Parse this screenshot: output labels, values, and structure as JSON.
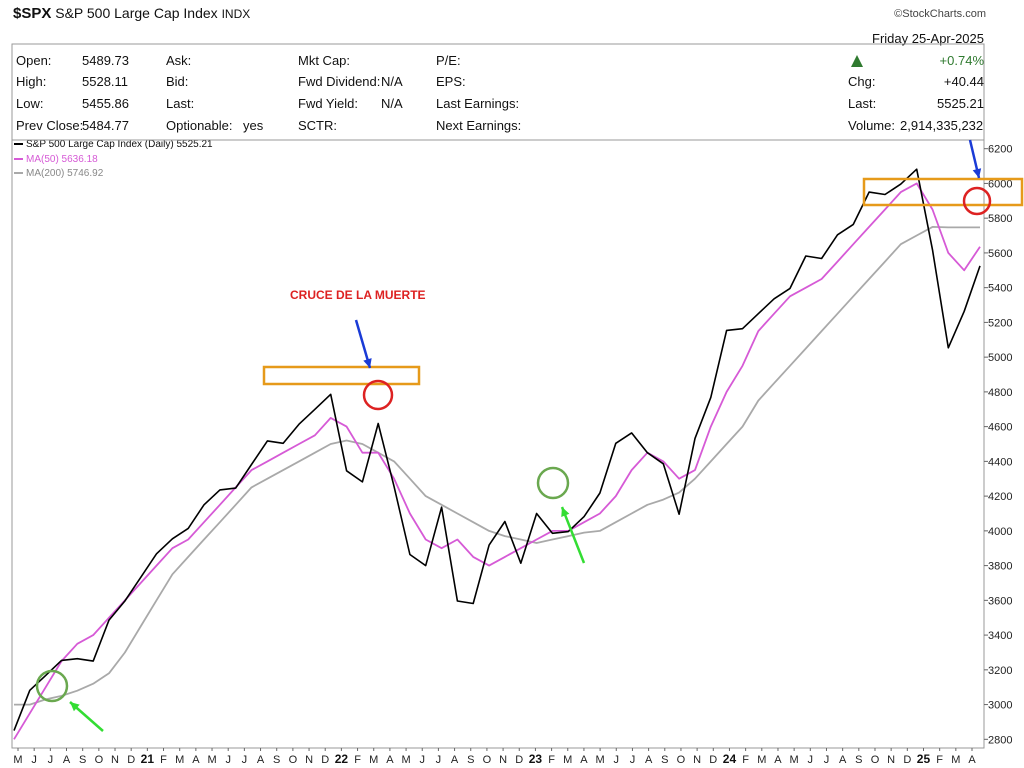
{
  "header": {
    "symbol": "$SPX",
    "name": "S&P 500 Large Cap Index",
    "exchange": "INDX",
    "credit": "©StockCharts.com",
    "date": "Friday  25-Apr-2025",
    "pct_change": "+0.74%",
    "fields": {
      "open_label": "Open:",
      "open_value": "5489.73",
      "high_label": "High:",
      "high_value": "5528.11",
      "low_label": "Low:",
      "low_value": "5455.86",
      "prev_label": "Prev Close:",
      "prev_value": "5484.77",
      "ask_label": "Ask:",
      "bid_label": "Bid:",
      "last_label": "Last:",
      "optionable_label": "Optionable:",
      "optionable_value": "yes",
      "mktcap_label": "Mkt Cap:",
      "fwd_div_label": "Fwd Dividend:",
      "fwd_div_value": "N/A",
      "fwd_yield_label": "Fwd Yield:",
      "fwd_yield_value": "N/A",
      "sctr_label": "SCTR:",
      "pe_label": "P/E:",
      "eps_label": "EPS:",
      "last_earn_label": "Last Earnings:",
      "next_earn_label": "Next Earnings:",
      "chg_label": "Chg:",
      "chg_value": "+40.44",
      "last2_label": "Last:",
      "last2_value": "5525.21",
      "volume_label": "Volume:",
      "volume_value": "2,914,335,232"
    }
  },
  "legend": {
    "price": "S&P 500 Large Cap Index (Daily) 5525.21",
    "ma50": "MA(50) 5636.18",
    "ma200": "MA(200) 5746.92"
  },
  "colors": {
    "price": "#000000",
    "ma50": "#d65ad6",
    "ma200": "#a9a9a9",
    "box": "#e69a1a",
    "red_circle": "#dd2222",
    "green_circle": "#6aa84f",
    "green_arrow": "#33dd33",
    "blue_arrow": "#1a3bd6",
    "up_triangle": "#2f7a2f"
  },
  "annotations": {
    "death_cross_label": "CRUCE DE LA MUERTE"
  },
  "chart_data": {
    "type": "line",
    "title": "$SPX S&P 500 Large Cap Index INDX",
    "ylim": [
      2750,
      6250
    ],
    "y_ticks": [
      2800,
      3000,
      3200,
      3400,
      3600,
      3800,
      4000,
      4200,
      4400,
      4600,
      4800,
      5000,
      5200,
      5400,
      5600,
      5800,
      6000,
      6200
    ],
    "x_labels": [
      "M",
      "J",
      "J",
      "A",
      "S",
      "O",
      "N",
      "D",
      "21",
      "F",
      "M",
      "A",
      "M",
      "J",
      "J",
      "A",
      "S",
      "O",
      "N",
      "D",
      "22",
      "F",
      "M",
      "A",
      "M",
      "J",
      "J",
      "A",
      "S",
      "O",
      "N",
      "D",
      "23",
      "F",
      "M",
      "A",
      "M",
      "J",
      "J",
      "A",
      "S",
      "O",
      "N",
      "D",
      "24",
      "F",
      "M",
      "A",
      "M",
      "J",
      "J",
      "A",
      "S",
      "O",
      "N",
      "D",
      "25",
      "F",
      "M",
      "A"
    ],
    "year_labels": [
      "21",
      "22",
      "23",
      "24",
      "25"
    ],
    "series": [
      {
        "name": "S&P 500 Large Cap Index (Daily)",
        "values": [
          2850,
          3100,
          3150,
          3200,
          3300,
          3250,
          3450,
          3650,
          3750,
          3850,
          3900,
          4050,
          4150,
          4200,
          4300,
          4400,
          4500,
          4450,
          4650,
          4700,
          4750,
          4400,
          4300,
          4600,
          4200,
          3900,
          3800,
          4100,
          3650,
          3600,
          3900,
          4000,
          3850,
          4100,
          3950,
          4050,
          4100,
          4200,
          4450,
          4600,
          4450,
          4350,
          4150,
          4550,
          4750,
          5100,
          5200,
          5250,
          5300,
          5450,
          5600,
          5550,
          5650,
          5800,
          5950,
          5900,
          6050,
          6100,
          5600,
          5000,
          5300,
          5525
        ]
      },
      {
        "name": "MA(50)",
        "values": [
          2800,
          2950,
          3100,
          3250,
          3350,
          3400,
          3500,
          3600,
          3700,
          3800,
          3900,
          3950,
          4050,
          4150,
          4250,
          4350,
          4400,
          4450,
          4500,
          4550,
          4650,
          4600,
          4450,
          4450,
          4300,
          4100,
          3950,
          3900,
          3950,
          3850,
          3800,
          3850,
          3900,
          3950,
          4000,
          4000,
          4050,
          4100,
          4200,
          4350,
          4450,
          4400,
          4300,
          4350,
          4600,
          4800,
          4950,
          5150,
          5250,
          5350,
          5400,
          5450,
          5550,
          5650,
          5750,
          5850,
          5950,
          6000,
          5850,
          5600,
          5500,
          5636
        ]
      },
      {
        "name": "MA(200)",
        "values": [
          3000,
          3000,
          3030,
          3050,
          3080,
          3120,
          3180,
          3300,
          3450,
          3600,
          3750,
          3850,
          3950,
          4050,
          4150,
          4250,
          4300,
          4350,
          4400,
          4450,
          4500,
          4520,
          4500,
          4450,
          4400,
          4300,
          4200,
          4150,
          4100,
          4050,
          4000,
          3970,
          3950,
          3930,
          3950,
          3970,
          3990,
          4000,
          4050,
          4100,
          4150,
          4180,
          4220,
          4300,
          4400,
          4500,
          4600,
          4750,
          4850,
          4950,
          5050,
          5150,
          5250,
          5350,
          5450,
          5550,
          5650,
          5700,
          5750,
          5747,
          5747,
          5747
        ]
      }
    ]
  }
}
